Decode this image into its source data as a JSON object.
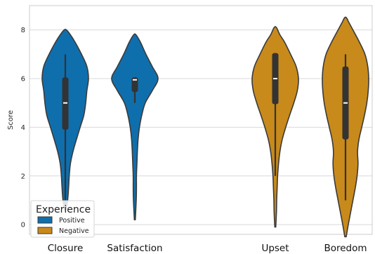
{
  "chart_data": {
    "type": "violin",
    "ylabel": "Score",
    "xlabel": "",
    "ylim": [
      -0.4,
      9.0
    ],
    "yticks": [
      0,
      2,
      4,
      6,
      8
    ],
    "grid": true,
    "categories": [
      "Closure",
      "Satisfaction",
      "Upset",
      "Boredom"
    ],
    "legend": {
      "title": "Experience",
      "placement": "bottom-left",
      "entries": [
        {
          "label": "Positive",
          "color": "#0f6fad"
        },
        {
          "label": "Negative",
          "color": "#c88a1a"
        }
      ]
    },
    "violins": [
      {
        "category": "Closure",
        "group": "Positive",
        "color": "#0f6fad",
        "min": 0.7,
        "q1": 3.9,
        "median": 5.0,
        "q3": 6.05,
        "max": 7.0,
        "extent": [
          0.6,
          8.0
        ],
        "density": [
          [
            0.6,
            0.03
          ],
          [
            1.0,
            0.1
          ],
          [
            1.5,
            0.14
          ],
          [
            2.0,
            0.17
          ],
          [
            2.5,
            0.22
          ],
          [
            3.0,
            0.33
          ],
          [
            3.5,
            0.48
          ],
          [
            4.0,
            0.64
          ],
          [
            4.5,
            0.8
          ],
          [
            5.0,
            0.88
          ],
          [
            5.5,
            0.93
          ],
          [
            6.0,
            1.0
          ],
          [
            6.5,
            0.93
          ],
          [
            7.0,
            0.7
          ],
          [
            7.5,
            0.42
          ],
          [
            7.8,
            0.22
          ],
          [
            8.0,
            0.05
          ]
        ]
      },
      {
        "category": "Satisfaction",
        "group": "Positive",
        "color": "#0f6fad",
        "min": 5.0,
        "q1": 5.45,
        "median": 5.95,
        "q3": 6.05,
        "max": 6.05,
        "extent": [
          0.2,
          7.8
        ],
        "density": [
          [
            0.2,
            0.02
          ],
          [
            1.0,
            0.06
          ],
          [
            1.5,
            0.07
          ],
          [
            2.0,
            0.07
          ],
          [
            2.5,
            0.09
          ],
          [
            3.0,
            0.11
          ],
          [
            3.5,
            0.14
          ],
          [
            4.0,
            0.2
          ],
          [
            4.5,
            0.3
          ],
          [
            5.0,
            0.45
          ],
          [
            5.5,
            0.75
          ],
          [
            6.0,
            1.0
          ],
          [
            6.5,
            0.75
          ],
          [
            7.0,
            0.48
          ],
          [
            7.5,
            0.24
          ],
          [
            7.8,
            0.05
          ]
        ]
      },
      {
        "category": "Upset",
        "group": "Negative",
        "color": "#c88a1a",
        "min": 2.0,
        "q1": 4.95,
        "median": 6.0,
        "q3": 7.05,
        "max": 7.05,
        "extent": [
          -0.1,
          8.1
        ],
        "density": [
          [
            -0.1,
            0.02
          ],
          [
            0.5,
            0.05
          ],
          [
            1.0,
            0.06
          ],
          [
            1.5,
            0.08
          ],
          [
            2.0,
            0.1
          ],
          [
            2.5,
            0.14
          ],
          [
            3.0,
            0.2
          ],
          [
            3.5,
            0.3
          ],
          [
            4.0,
            0.45
          ],
          [
            4.5,
            0.62
          ],
          [
            5.0,
            0.8
          ],
          [
            5.5,
            0.95
          ],
          [
            6.0,
            1.0
          ],
          [
            6.5,
            0.9
          ],
          [
            7.0,
            0.66
          ],
          [
            7.5,
            0.4
          ],
          [
            7.8,
            0.2
          ],
          [
            8.1,
            0.05
          ]
        ]
      },
      {
        "category": "Boredom",
        "group": "Negative",
        "color": "#c88a1a",
        "min": 1.0,
        "q1": 3.5,
        "median": 5.0,
        "q3": 6.5,
        "max": 7.0,
        "extent": [
          -0.5,
          8.5
        ],
        "density": [
          [
            -0.5,
            0.03
          ],
          [
            0.0,
            0.12
          ],
          [
            0.5,
            0.22
          ],
          [
            1.0,
            0.32
          ],
          [
            1.5,
            0.42
          ],
          [
            2.0,
            0.5
          ],
          [
            2.5,
            0.54
          ],
          [
            3.0,
            0.52
          ],
          [
            3.5,
            0.58
          ],
          [
            4.0,
            0.7
          ],
          [
            4.5,
            0.82
          ],
          [
            5.0,
            0.92
          ],
          [
            5.5,
            0.98
          ],
          [
            6.0,
            1.0
          ],
          [
            6.5,
            0.96
          ],
          [
            7.0,
            0.84
          ],
          [
            7.5,
            0.6
          ],
          [
            8.0,
            0.32
          ],
          [
            8.3,
            0.15
          ],
          [
            8.5,
            0.04
          ]
        ]
      }
    ]
  }
}
